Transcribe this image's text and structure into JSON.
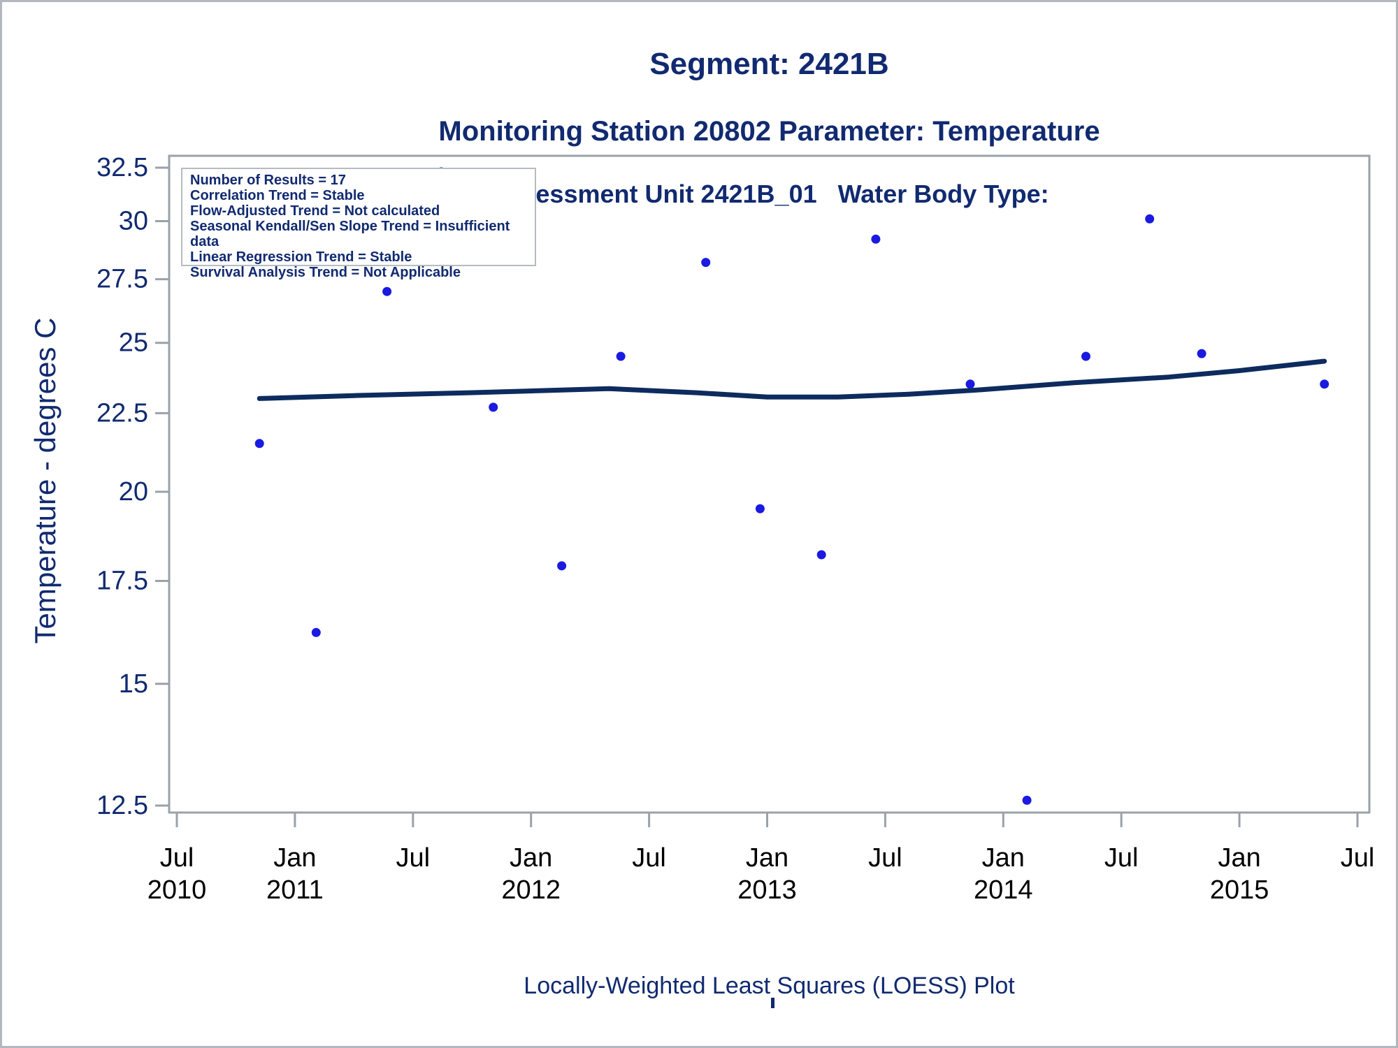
{
  "titles": {
    "line1": "Segment: 2421B",
    "line2": "Monitoring Station 20802 Parameter: Temperature",
    "line3": "Assessment Unit 2421B_01   Water Body Type:"
  },
  "stats_box": {
    "lines": [
      "Number of Results = 17",
      "Correlation Trend = Stable",
      "Flow-Adjusted Trend = Not calculated",
      "Seasonal Kendall/Sen Slope Trend = Insufficient data",
      "Linear Regression Trend = Stable",
      "Survival Analysis Trend = Not Applicable"
    ]
  },
  "y_axis": {
    "label": "Temperature - degrees C",
    "scale": "log",
    "tick_values": [
      32.5,
      30,
      27.5,
      25,
      22.5,
      20,
      17.5,
      15,
      12.5
    ]
  },
  "x_axis": {
    "ticks": [
      {
        "pos": 2010.5,
        "month": "Jul",
        "year": "2010"
      },
      {
        "pos": 2011.0,
        "month": "Jan",
        "year": "2011"
      },
      {
        "pos": 2011.5,
        "month": "Jul",
        "year": ""
      },
      {
        "pos": 2012.0,
        "month": "Jan",
        "year": "2012"
      },
      {
        "pos": 2012.5,
        "month": "Jul",
        "year": ""
      },
      {
        "pos": 2013.0,
        "month": "Jan",
        "year": "2013"
      },
      {
        "pos": 2013.5,
        "month": "Jul",
        "year": ""
      },
      {
        "pos": 2014.0,
        "month": "Jan",
        "year": "2014"
      },
      {
        "pos": 2014.5,
        "month": "Jul",
        "year": ""
      },
      {
        "pos": 2015.0,
        "month": "Jan",
        "year": "2015"
      },
      {
        "pos": 2015.5,
        "month": "Jul",
        "year": ""
      }
    ]
  },
  "caption": "Locally-Weighted Least Squares (LOESS) Plot",
  "colors": {
    "title_navy": "#112a70",
    "x_label_black": "#000000",
    "axis_gray": "#9ba1a9",
    "box_border_gray": "#b6bbc1",
    "point_blue": "#1a1ae0",
    "loess_navy": "#0d2b5e",
    "frame_gray": "#b3b8be"
  },
  "chart_data": {
    "type": "scatter",
    "title": "Segment: 2421B",
    "subtitle": "Monitoring Station 20802 Parameter: Temperature",
    "subtitle2": "Assessment Unit 2421B_01   Water Body Type:",
    "caption": "Locally-Weighted Least Squares (LOESS) Plot",
    "ylabel": "Temperature - degrees C",
    "y_scale": "log",
    "ylim": [
      12.5,
      32.5
    ],
    "xlim_years": [
      2010.5,
      2015.5
    ],
    "x_tick_interval": "6 months",
    "grid": false,
    "legend_stats": [
      "Number of Results = 17",
      "Correlation Trend = Stable",
      "Flow-Adjusted Trend = Not calculated",
      "Seasonal Kendall/Sen Slope Trend = Insufficient data",
      "Linear Regression Trend = Stable",
      "Survival Analysis Trend = Not Applicable"
    ],
    "points": [
      [
        2010.85,
        21.5
      ],
      [
        2011.09,
        16.2
      ],
      [
        2011.39,
        27.0
      ],
      [
        2011.62,
        32.3
      ],
      [
        2011.84,
        22.7
      ],
      [
        2012.13,
        17.9
      ],
      [
        2012.38,
        24.5
      ],
      [
        2012.74,
        28.2
      ],
      [
        2012.97,
        19.5
      ],
      [
        2013.23,
        18.2
      ],
      [
        2013.46,
        29.2
      ],
      [
        2013.86,
        23.5
      ],
      [
        2014.1,
        12.6
      ],
      [
        2014.35,
        24.5
      ],
      [
        2014.62,
        30.1
      ],
      [
        2014.84,
        24.6
      ],
      [
        2015.36,
        23.5
      ]
    ],
    "loess_line": [
      [
        2010.85,
        23.0
      ],
      [
        2011.25,
        23.1
      ],
      [
        2011.74,
        23.2
      ],
      [
        2012.33,
        23.34
      ],
      [
        2012.7,
        23.2
      ],
      [
        2013.0,
        23.05
      ],
      [
        2013.3,
        23.05
      ],
      [
        2013.6,
        23.15
      ],
      [
        2013.9,
        23.3
      ],
      [
        2014.3,
        23.55
      ],
      [
        2014.7,
        23.75
      ],
      [
        2015.0,
        23.98
      ],
      [
        2015.36,
        24.32
      ]
    ]
  }
}
